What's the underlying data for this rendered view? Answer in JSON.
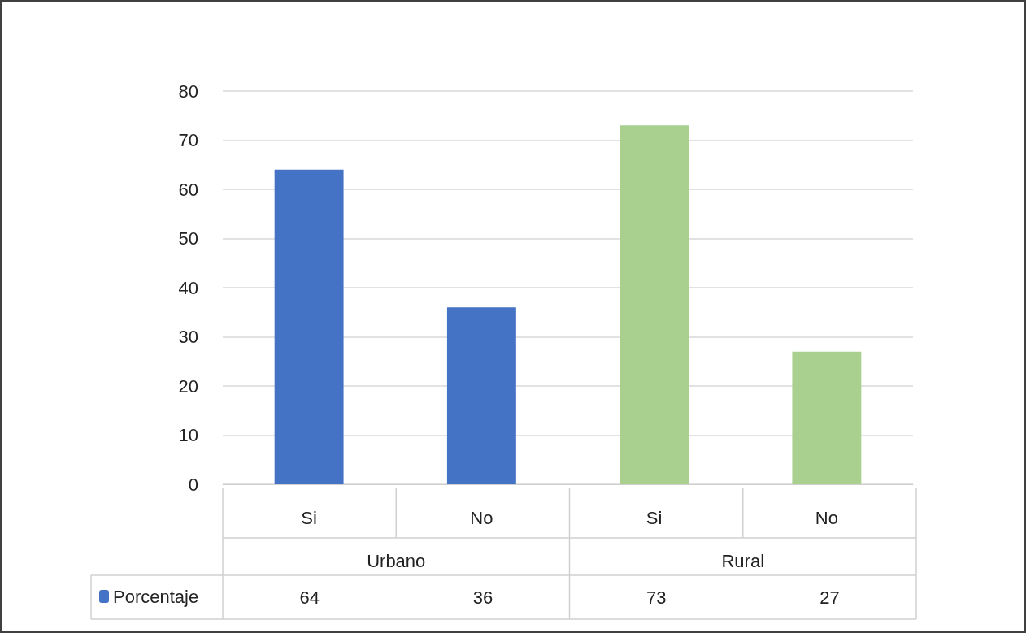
{
  "chart_data": {
    "type": "bar",
    "categories": [
      "Si",
      "No",
      "Si",
      "No"
    ],
    "series": [
      {
        "name": "Porcentaje",
        "color": "#4472c4",
        "colors": [
          "#4472c4",
          "#4472c4",
          "#a9d08e",
          "#a9d08e"
        ],
        "values": [
          64,
          36,
          73,
          27
        ]
      }
    ],
    "annotations": [
      "Urbano",
      "Rural"
    ],
    "ylim": [
      0,
      80
    ],
    "yticks": [
      0,
      10,
      20,
      30,
      40,
      50,
      60,
      70,
      80
    ],
    "grid": "y",
    "legend": "bottom",
    "data_labels": true
  }
}
